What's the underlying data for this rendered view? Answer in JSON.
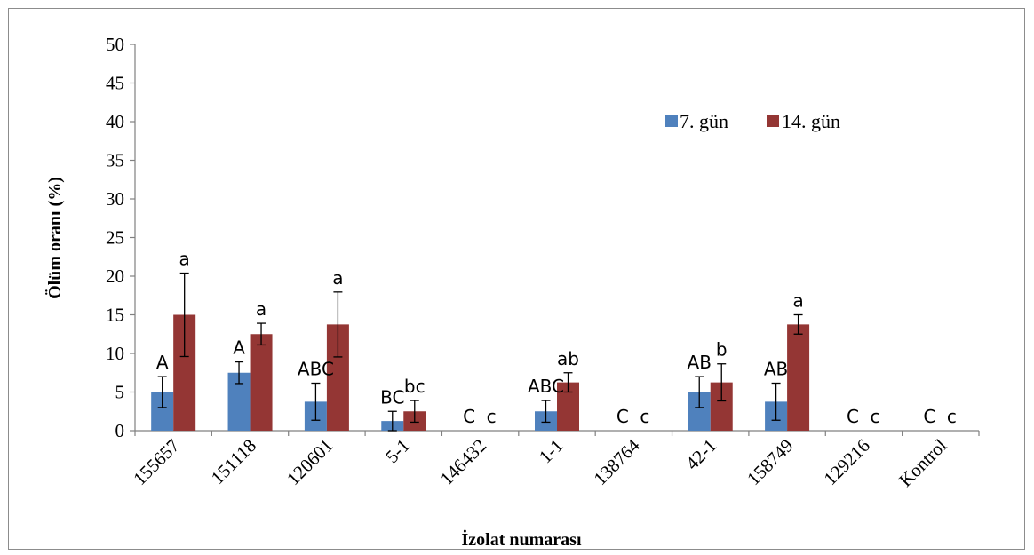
{
  "chart_data": {
    "type": "bar",
    "title": "",
    "xlabel": "İzolat numarası",
    "ylabel": "Ölüm oranı (%)",
    "ylim": [
      0,
      50
    ],
    "yticks": [
      "0",
      "5",
      "10",
      "15",
      "20",
      "25",
      "30",
      "35",
      "40",
      "45",
      "50"
    ],
    "grid": false,
    "legend_position": "top-right",
    "categories": [
      "155657",
      "151118",
      "120601",
      "5-1",
      "146432",
      "1-1",
      "138764",
      "42-1",
      "158749",
      "129216",
      "Kontrol"
    ],
    "series": [
      {
        "name": "7. gün",
        "color": "#4f81bd",
        "values": [
          5.0,
          7.5,
          3.75,
          1.25,
          0,
          2.5,
          0,
          5.0,
          3.75,
          0,
          0
        ],
        "error": [
          2.0,
          1.4,
          2.4,
          1.25,
          0,
          1.4,
          0,
          2.0,
          2.4,
          0,
          0
        ],
        "labels": [
          "A",
          "A",
          "ABC",
          "BC",
          "C",
          "ABC",
          "C",
          "AB",
          "AB",
          "C",
          "C"
        ]
      },
      {
        "name": "14. gün",
        "color": "#943634",
        "values": [
          15.0,
          12.5,
          13.75,
          2.5,
          0,
          6.25,
          0,
          6.25,
          13.75,
          0,
          0
        ],
        "error": [
          5.4,
          1.4,
          4.2,
          1.4,
          0,
          1.25,
          0,
          2.4,
          1.25,
          0,
          0
        ],
        "labels": [
          "a",
          "a",
          "a",
          "bc",
          "c",
          "ab",
          "c",
          "b",
          "a",
          "c",
          "c"
        ]
      }
    ]
  }
}
